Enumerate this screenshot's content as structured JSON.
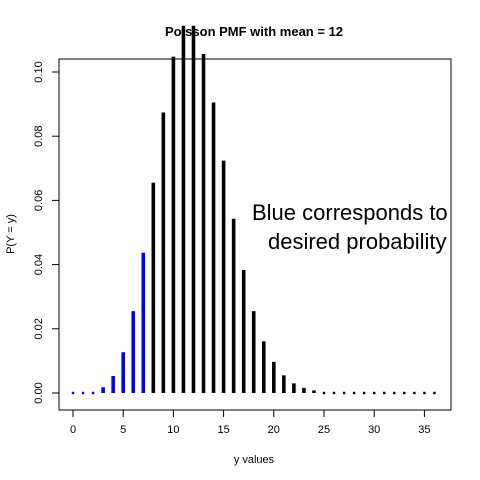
{
  "chart_data": {
    "type": "bar",
    "title": "Poisson PMF with mean = 12",
    "xlabel": "y values",
    "ylabel": "P(Y = y)",
    "xlim": [
      -1,
      37
    ],
    "ylim": [
      0,
      0.118
    ],
    "x_ticks": [
      0,
      5,
      10,
      15,
      20,
      25,
      30,
      35
    ],
    "x_tick_labels": [
      "0",
      "5",
      "10",
      "15",
      "20",
      "25",
      "30",
      "35"
    ],
    "y_ticks": [
      0,
      0.02,
      0.04,
      0.06,
      0.08,
      0.1
    ],
    "y_tick_labels": [
      "0.00",
      "0.02",
      "0.04",
      "0.06",
      "0.08",
      "0.10"
    ],
    "x": [
      0,
      1,
      2,
      3,
      4,
      5,
      6,
      7,
      8,
      9,
      10,
      11,
      12,
      13,
      14,
      15,
      16,
      17,
      18,
      19,
      20,
      21,
      22,
      23,
      24,
      25,
      26,
      27,
      28,
      29,
      30,
      31,
      32,
      33,
      34,
      35,
      36
    ],
    "values": [
      6e-06,
      7e-05,
      0.00044,
      0.0018,
      0.0053,
      0.0127,
      0.0255,
      0.0437,
      0.0655,
      0.0874,
      0.1048,
      0.1144,
      0.1144,
      0.1056,
      0.0905,
      0.0724,
      0.0543,
      0.0383,
      0.0255,
      0.0161,
      0.0097,
      0.0055,
      0.003,
      0.0016,
      0.0008,
      0.0004,
      0.0002,
      8e-05,
      4e-05,
      1e-05,
      6e-06,
      2e-06,
      1e-06,
      3e-07,
      1e-07,
      3e-08,
      1e-08
    ],
    "highlight_max_x": 7,
    "colors": {
      "highlight": "#0000ff",
      "default": "#000000"
    },
    "grid": false,
    "annotation": [
      "Blue corresponds to",
      "desired probability"
    ]
  }
}
